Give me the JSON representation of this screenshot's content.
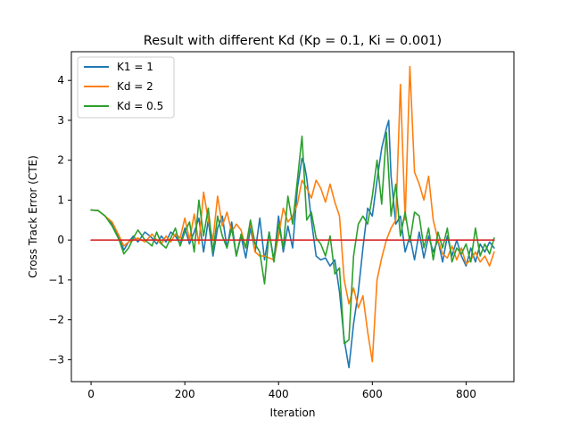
{
  "chart_data": {
    "type": "line",
    "title": "Result with different Kd (Kp = 0.1, Ki = 0.001)",
    "xlabel": "Iteration",
    "ylabel": "Cross Track Error (CTE)",
    "xlim": [
      -42,
      902
    ],
    "ylim": [
      -3.55,
      4.72
    ],
    "xticks": [
      0,
      200,
      400,
      600,
      800
    ],
    "yticks": [
      -3,
      -2,
      -1,
      0,
      1,
      2,
      3,
      4
    ],
    "grid": false,
    "legend_position": "top-left",
    "series": [
      {
        "name": "K1 = 1",
        "color": "#1f77b4",
        "x": [
          0,
          15,
          30,
          45,
          60,
          70,
          80,
          90,
          100,
          115,
          130,
          140,
          150,
          160,
          170,
          180,
          190,
          200,
          210,
          220,
          230,
          240,
          250,
          260,
          270,
          280,
          290,
          300,
          310,
          320,
          330,
          340,
          350,
          360,
          370,
          380,
          390,
          400,
          410,
          420,
          430,
          440,
          450,
          455,
          460,
          470,
          480,
          490,
          500,
          510,
          520,
          530,
          540,
          550,
          560,
          570,
          580,
          590,
          600,
          610,
          620,
          630,
          635,
          640,
          650,
          660,
          670,
          680,
          690,
          700,
          710,
          720,
          730,
          740,
          750,
          760,
          770,
          780,
          790,
          800,
          810,
          820,
          830,
          840,
          850,
          860
        ],
        "y": [
          0.75,
          0.74,
          0.6,
          0.4,
          0.05,
          -0.25,
          -0.05,
          0.1,
          -0.05,
          0.2,
          0.05,
          -0.1,
          0.1,
          -0.05,
          0.2,
          0.1,
          -0.1,
          0.3,
          -0.1,
          0.2,
          0.55,
          -0.3,
          0.5,
          -0.4,
          0.3,
          0.6,
          -0.2,
          0.45,
          -0.4,
          0.1,
          -0.45,
          0.3,
          -0.3,
          0.55,
          -0.5,
          0.2,
          -0.5,
          0.6,
          -0.3,
          0.35,
          -0.2,
          1.3,
          2.05,
          1.9,
          1.55,
          0.5,
          -0.4,
          -0.5,
          -0.45,
          -0.65,
          -0.5,
          -1.3,
          -2.5,
          -3.2,
          -2.1,
          -1.3,
          -0.2,
          0.8,
          0.6,
          1.5,
          2.3,
          2.8,
          3.0,
          1.6,
          0.4,
          0.6,
          -0.3,
          0.1,
          -0.5,
          0.2,
          -0.45,
          0.1,
          -0.3,
          0.0,
          -0.55,
          0.1,
          -0.4,
          0.0,
          -0.4,
          -0.65,
          -0.2,
          -0.55,
          -0.1,
          -0.3,
          -0.05,
          -0.2
        ]
      },
      {
        "name": "Kd = 2",
        "color": "#ff7f0e",
        "x": [
          0,
          15,
          30,
          45,
          60,
          70,
          80,
          90,
          100,
          115,
          130,
          140,
          150,
          160,
          170,
          180,
          190,
          200,
          210,
          220,
          230,
          240,
          250,
          260,
          270,
          280,
          290,
          300,
          310,
          320,
          330,
          340,
          350,
          360,
          370,
          380,
          390,
          400,
          410,
          420,
          430,
          440,
          450,
          460,
          470,
          480,
          490,
          500,
          510,
          520,
          530,
          540,
          550,
          560,
          570,
          580,
          590,
          600,
          610,
          620,
          630,
          640,
          650,
          660,
          670,
          680,
          690,
          700,
          710,
          720,
          730,
          740,
          750,
          760,
          770,
          780,
          790,
          800,
          810,
          820,
          830,
          840,
          850,
          860
        ],
        "y": [
          0.75,
          0.74,
          0.6,
          0.45,
          0.1,
          -0.15,
          -0.05,
          0.0,
          0.05,
          -0.05,
          0.15,
          0.0,
          -0.1,
          0.1,
          -0.05,
          0.15,
          0.05,
          0.55,
          0.0,
          0.65,
          -0.1,
          1.2,
          0.5,
          0.0,
          1.1,
          0.35,
          0.7,
          0.2,
          0.4,
          0.25,
          -0.2,
          0.45,
          -0.3,
          -0.4,
          -0.4,
          -0.45,
          -0.5,
          0.1,
          0.8,
          0.45,
          0.6,
          0.9,
          1.5,
          1.3,
          1.05,
          1.5,
          1.3,
          0.95,
          1.4,
          0.95,
          0.6,
          -1.0,
          -1.6,
          -1.2,
          -1.7,
          -1.4,
          -2.3,
          -3.05,
          -1.0,
          -0.45,
          0.0,
          0.3,
          0.5,
          3.9,
          0.5,
          4.35,
          1.7,
          1.4,
          1.0,
          1.6,
          0.5,
          0.0,
          -0.35,
          -0.45,
          -0.15,
          -0.5,
          -0.2,
          -0.6,
          -0.5,
          -0.3,
          -0.55,
          -0.4,
          -0.65,
          -0.3
        ]
      },
      {
        "name": "Kd = 0.5",
        "color": "#2ca02c",
        "x": [
          0,
          15,
          30,
          45,
          60,
          70,
          80,
          90,
          100,
          115,
          130,
          140,
          150,
          160,
          170,
          180,
          190,
          200,
          210,
          220,
          230,
          240,
          250,
          260,
          270,
          280,
          290,
          300,
          310,
          320,
          330,
          340,
          350,
          360,
          370,
          380,
          390,
          400,
          410,
          420,
          430,
          440,
          450,
          460,
          470,
          480,
          490,
          500,
          510,
          520,
          530,
          540,
          550,
          560,
          570,
          580,
          590,
          600,
          610,
          620,
          630,
          640,
          650,
          660,
          670,
          680,
          690,
          700,
          710,
          720,
          730,
          740,
          750,
          760,
          770,
          780,
          790,
          800,
          810,
          820,
          830,
          840,
          850,
          860
        ],
        "y": [
          0.75,
          0.74,
          0.6,
          0.35,
          0.0,
          -0.35,
          -0.2,
          0.05,
          0.25,
          0.0,
          -0.15,
          0.2,
          -0.1,
          -0.2,
          0.05,
          0.3,
          -0.15,
          0.2,
          0.45,
          -0.3,
          1.0,
          0.1,
          0.8,
          -0.3,
          0.6,
          0.1,
          -0.2,
          0.3,
          -0.4,
          0.15,
          -0.2,
          0.5,
          -0.1,
          -0.3,
          -1.1,
          0.2,
          -0.55,
          0.4,
          -0.2,
          1.1,
          0.4,
          1.5,
          2.6,
          0.5,
          0.7,
          0.05,
          -0.1,
          -0.4,
          0.1,
          -0.85,
          -0.7,
          -2.6,
          -2.5,
          -0.4,
          0.4,
          0.6,
          0.4,
          1.1,
          2.0,
          0.9,
          2.7,
          0.6,
          1.4,
          0.1,
          0.7,
          -0.05,
          0.7,
          0.6,
          -0.2,
          0.3,
          -0.5,
          0.2,
          -0.2,
          0.3,
          -0.55,
          -0.2,
          -0.35,
          -0.1,
          -0.55,
          0.3,
          -0.4,
          -0.1,
          -0.35,
          0.05
        ]
      },
      {
        "name": "",
        "color": "#d62728",
        "x": [
          0,
          860
        ],
        "y": [
          0,
          0
        ]
      }
    ]
  }
}
